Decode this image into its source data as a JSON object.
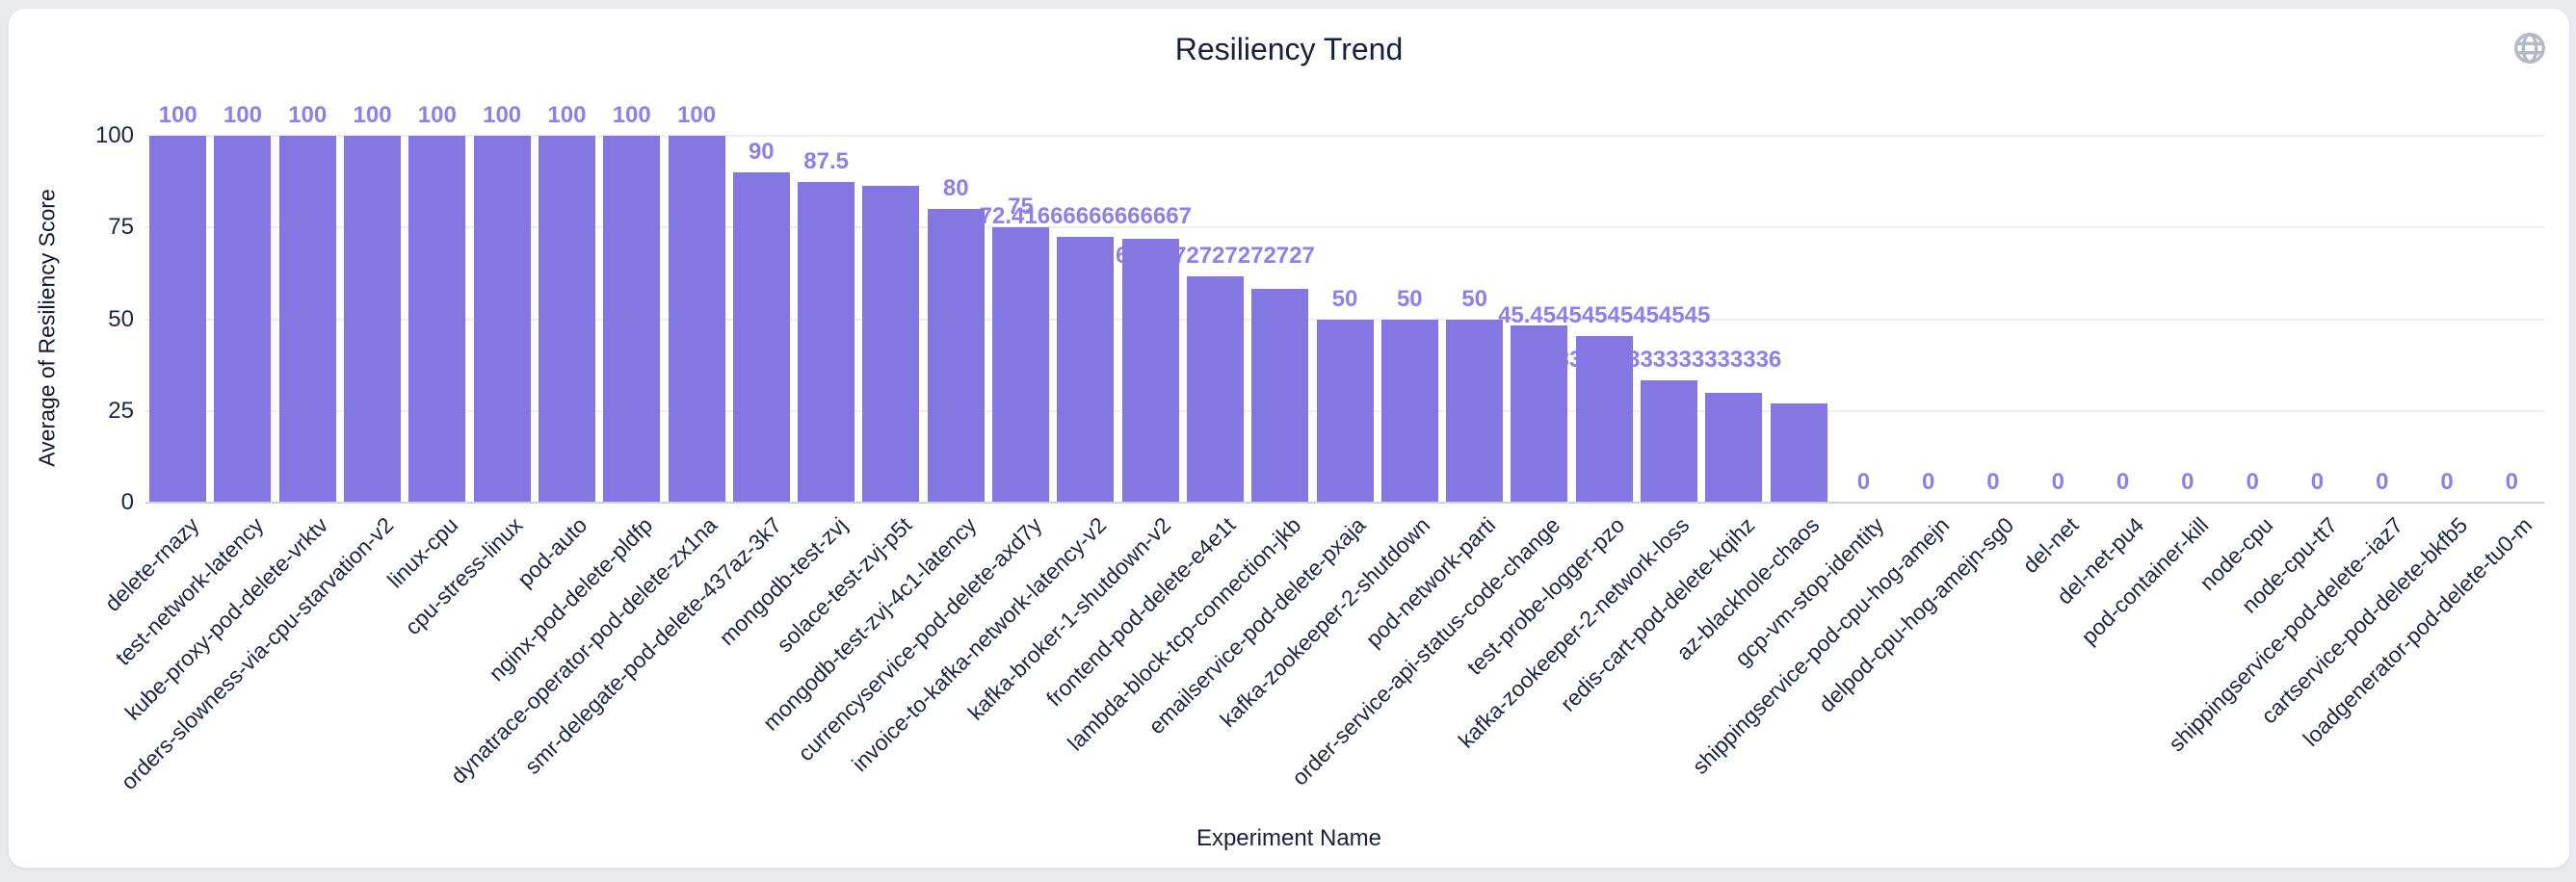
{
  "header": {
    "title": "Resiliency Trend",
    "globe_icon": "globe-icon",
    "globe_color": "#b2bac6"
  },
  "colors": {
    "bar": "#8477e2",
    "bar_label": "#8d80ea",
    "title_text": "#15203a",
    "axis_text": "#1b2640",
    "gridline": "#ededf2",
    "axis_line": "#c7d3e4",
    "card_bg": "#ffffff",
    "page_bg": "#e8eaee"
  },
  "chart_data": {
    "type": "bar",
    "title": "Resiliency Trend",
    "xlabel": "Experiment Name",
    "ylabel": "Average of Resiliency Score",
    "ylim": [
      0,
      100
    ],
    "yticks": [
      0,
      25,
      50,
      75,
      100
    ],
    "grid": true,
    "legend": false,
    "categories": [
      "delete-rnazy",
      "test-network-latency",
      "kube-proxy-pod-delete-vrktv",
      "orders-slowness-via-cpu-starvation-v2",
      "linux-cpu",
      "cpu-stress-linux",
      "pod-auto",
      "nginx-pod-delete-pldfp",
      "dynatrace-operator-pod-delete-zx1na",
      "smr-delegate-pod-delete-437az-3k7",
      "mongodb-test-zvj",
      "solace-test-zvj-p5t",
      "mongodb-test-zvj-4c1-latency",
      "currencyservice-pod-delete-axd7y",
      "invoice-to-kafka-network-latency-v2",
      "kafka-broker-1-shutdown-v2",
      "frontend-pod-delete-e4e1t",
      "lambda-block-tcp-connection-jkb",
      "emailservice-pod-delete-pxaja",
      "kafka-zookeeper-2-shutdown",
      "pod-network-parti",
      "order-service-api-status-code-change",
      "test-probe-logger-pzo",
      "kafka-zookeeper-2-network-loss",
      "redis-cart-pod-delete-kqihz",
      "az-blackhole-chaos",
      "gcp-vm-stop-identity",
      "shippingservice-pod-cpu-hog-amejn",
      "delpod-cpu-hog-amejn-sg0",
      "del-net",
      "del-net-pu4",
      "pod-container-kill",
      "node-cpu",
      "node-cpu-tt7",
      "shippingservice-pod-delete--iaz7",
      "cartservice-pod-delete-bkfb5",
      "loadgenerator-pod-delete-tu0-m"
    ],
    "values": [
      100,
      100,
      100,
      100,
      100,
      100,
      100,
      100,
      100,
      90,
      87.5,
      86.4,
      80,
      75,
      72.41666666666667,
      71.8,
      61.7272727272727,
      58.3,
      50,
      50,
      50,
      48.3,
      45.45454545454545,
      33.333333333333336,
      30,
      27,
      0,
      0,
      0,
      0,
      0,
      0,
      0,
      0,
      0,
      0,
      0
    ],
    "bar_labels": [
      "100",
      "100",
      "100",
      "100",
      "100",
      "100",
      "100",
      "100",
      "100",
      "90",
      "87.5",
      "",
      "80",
      "75",
      "72.41666666666667",
      "",
      "61.7272727272727",
      "",
      "50",
      "50",
      "50",
      "",
      "45.45454545454545",
      "33.333333333333336",
      "",
      "",
      "0",
      "0",
      "0",
      "0",
      "0",
      "0",
      "0",
      "0",
      "0",
      "0",
      "0"
    ]
  }
}
